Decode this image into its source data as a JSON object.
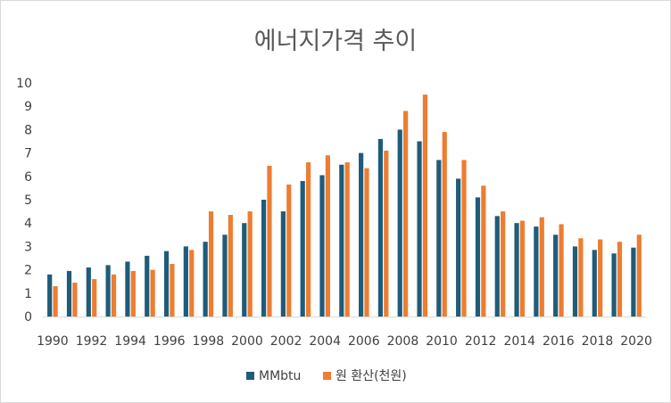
{
  "chart_data": {
    "type": "bar",
    "title": "에너지가격 추이",
    "xlabel": "",
    "ylabel": "",
    "ylim": [
      0,
      10
    ],
    "yticks": [
      "0",
      "1",
      "2",
      "3",
      "4",
      "5",
      "6",
      "7",
      "8",
      "9",
      "10"
    ],
    "categories": [
      "1990",
      "1991",
      "1992",
      "1993",
      "1994",
      "1995",
      "1996",
      "1997",
      "1998",
      "1999",
      "2000",
      "2001",
      "2002",
      "2003",
      "2004",
      "2005",
      "2006",
      "2007",
      "2008",
      "2009",
      "2010",
      "2011",
      "2012",
      "2013",
      "2014",
      "2015",
      "2016",
      "2017",
      "2018",
      "2019",
      "2020"
    ],
    "xtick_labels": [
      "1990",
      "1992",
      "1994",
      "1996",
      "1998",
      "2000",
      "2002",
      "2004",
      "2006",
      "2008",
      "2010",
      "2012",
      "2014",
      "2016",
      "2018",
      "2020"
    ],
    "series": [
      {
        "name": "MMbtu",
        "color": "#1f5c7a",
        "values": [
          1.8,
          1.95,
          2.1,
          2.2,
          2.35,
          2.6,
          2.8,
          3.0,
          3.2,
          3.5,
          4.0,
          5.0,
          4.5,
          5.8,
          6.05,
          6.5,
          7.0,
          7.6,
          8.0,
          7.5,
          6.7,
          5.9,
          5.1,
          4.3,
          4.0,
          3.85,
          3.5,
          3.0,
          2.85,
          2.7,
          2.95
        ]
      },
      {
        "name": "원 환산(천원)",
        "color": "#ed7d31",
        "values": [
          1.3,
          1.45,
          1.6,
          1.8,
          1.95,
          2.0,
          2.25,
          2.85,
          4.5,
          4.35,
          4.5,
          6.45,
          5.65,
          6.6,
          6.9,
          6.6,
          6.35,
          7.1,
          8.8,
          9.5,
          7.9,
          6.7,
          5.6,
          4.5,
          4.1,
          4.25,
          3.95,
          3.35,
          3.3,
          3.2,
          3.5
        ]
      }
    ],
    "grid": false,
    "legend": "bottom"
  }
}
